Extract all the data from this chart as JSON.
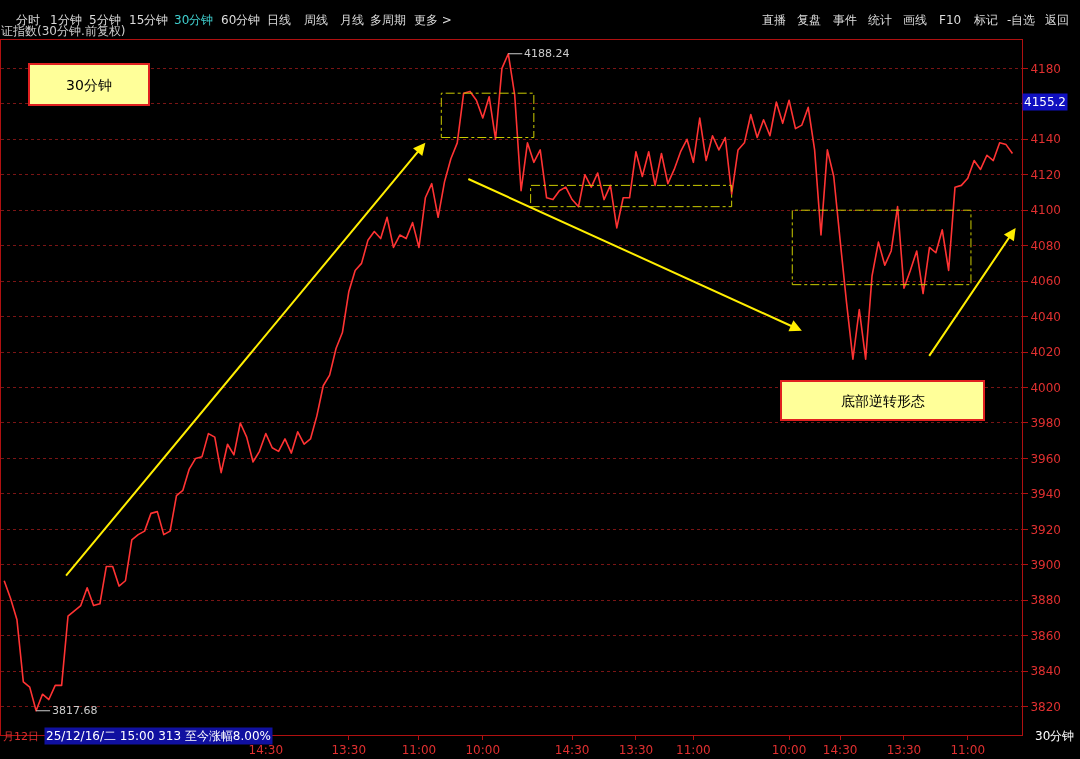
{
  "chart_data": {
    "type": "line",
    "title": "证指数(30分钟.前复权)",
    "categories": [
      null,
      null,
      null,
      null,
      null,
      null,
      null,
      null,
      null,
      null,
      null,
      null,
      null,
      null,
      null,
      null,
      null,
      null,
      null,
      null,
      null,
      null,
      null,
      null,
      null,
      null,
      null,
      null,
      null,
      null,
      null,
      null,
      null,
      null,
      null,
      null,
      null,
      null,
      null,
      null,
      null,
      "14:30",
      null,
      null,
      null,
      null,
      null,
      null,
      null,
      null,
      null,
      null,
      null,
      null,
      "13:30",
      null,
      null,
      null,
      null,
      null,
      null,
      null,
      null,
      null,
      null,
      "11:00",
      null,
      null,
      null,
      null,
      null,
      null,
      null,
      null,
      null,
      "10:00",
      null,
      null,
      null,
      null,
      null,
      null,
      null,
      null,
      null,
      null,
      null,
      null,
      null,
      "14:30",
      null,
      null,
      null,
      null,
      null,
      null,
      null,
      null,
      null,
      "13:30",
      null,
      null,
      null,
      null,
      null,
      null,
      null,
      null,
      "11:00",
      null,
      null,
      null,
      null,
      null,
      null,
      null,
      null,
      null,
      null,
      null,
      null,
      null,
      null,
      "10:00",
      null,
      null,
      null,
      null,
      null,
      null,
      null,
      "14:30",
      null,
      null,
      null,
      null,
      null,
      null,
      null,
      null,
      null,
      "13:30",
      null,
      null,
      null,
      null,
      null,
      null,
      null,
      null,
      null,
      "11:00",
      null,
      null,
      null,
      null,
      null,
      null,
      null
    ],
    "series": [
      {
        "color": "#ff3333",
        "values": [
          3891,
          3881,
          3869,
          3834,
          3831,
          3817.68,
          3827,
          3824,
          3832,
          3832,
          3871,
          3874,
          3877,
          3887,
          3877,
          3878,
          3899,
          3899,
          3888,
          3891,
          3914,
          3917,
          3919,
          3929,
          3930,
          3917,
          3919,
          3939,
          3942,
          3954,
          3960,
          3961,
          3974,
          3972,
          3952,
          3968,
          3962,
          3980,
          3972,
          3958,
          3964,
          3974,
          3966,
          3964,
          3971,
          3963,
          3975,
          3968,
          3971,
          3984,
          4001,
          4007,
          4022,
          4031,
          4054,
          4066,
          4070,
          4083,
          4088,
          4084,
          4096,
          4079,
          4086,
          4084,
          4093,
          4079,
          4107,
          4115,
          4096,
          4116,
          4129,
          4138,
          4166,
          4167,
          4162,
          4152,
          4164,
          4140,
          4180,
          4188.24,
          4165,
          4111,
          4138,
          4127,
          4134,
          4107,
          4106,
          4111,
          4113,
          4106,
          4102,
          4120,
          4113,
          4121,
          4106,
          4114,
          4090,
          4107,
          4107,
          4133,
          4119,
          4133,
          4114,
          4132,
          4115,
          4123,
          4133,
          4140,
          4127,
          4152,
          4128,
          4142,
          4134,
          4141,
          4109,
          4134,
          4138,
          4154,
          4141,
          4151,
          4142,
          4161,
          4149,
          4162,
          4146,
          4148,
          4158,
          4134,
          4086,
          4134,
          4119,
          4083,
          4048,
          4016,
          4044,
          4016,
          4063,
          4082,
          4069,
          4077,
          4102,
          4056,
          4066,
          4077,
          4053,
          4079,
          4076,
          4089,
          4066,
          4113,
          4114,
          4118,
          4128,
          4123,
          4131,
          4128,
          4138,
          4137,
          4132
        ]
      }
    ],
    "ylim": [
      3804,
      4196
    ],
    "yticks": [
      3820,
      3840,
      3860,
      3880,
      3900,
      3920,
      3940,
      3960,
      3980,
      4000,
      4020,
      4040,
      4060,
      4080,
      4100,
      4120,
      4140,
      {
        "value": 4160,
        "label": null
      },
      4180
    ],
    "grid": "y",
    "marker": "none",
    "line_style": "solid",
    "annotations": [
      "30分钟",
      "底部逆转形态",
      "4188.24",
      "3817.68",
      "4155.2",
      "月12日",
      "25/12/16/二 15:00 313 至今涨幅8.00%",
      "30分钟",
      "分时",
      "1分钟",
      "5分钟",
      "15分钟",
      "30分钟",
      "60分钟",
      "日线",
      "周线",
      "月线",
      "多周期",
      "更多 >",
      "直播",
      "复盘",
      "事件",
      "统计",
      "画线",
      "F10",
      "标记",
      "-自选",
      "返回"
    ]
  }
}
